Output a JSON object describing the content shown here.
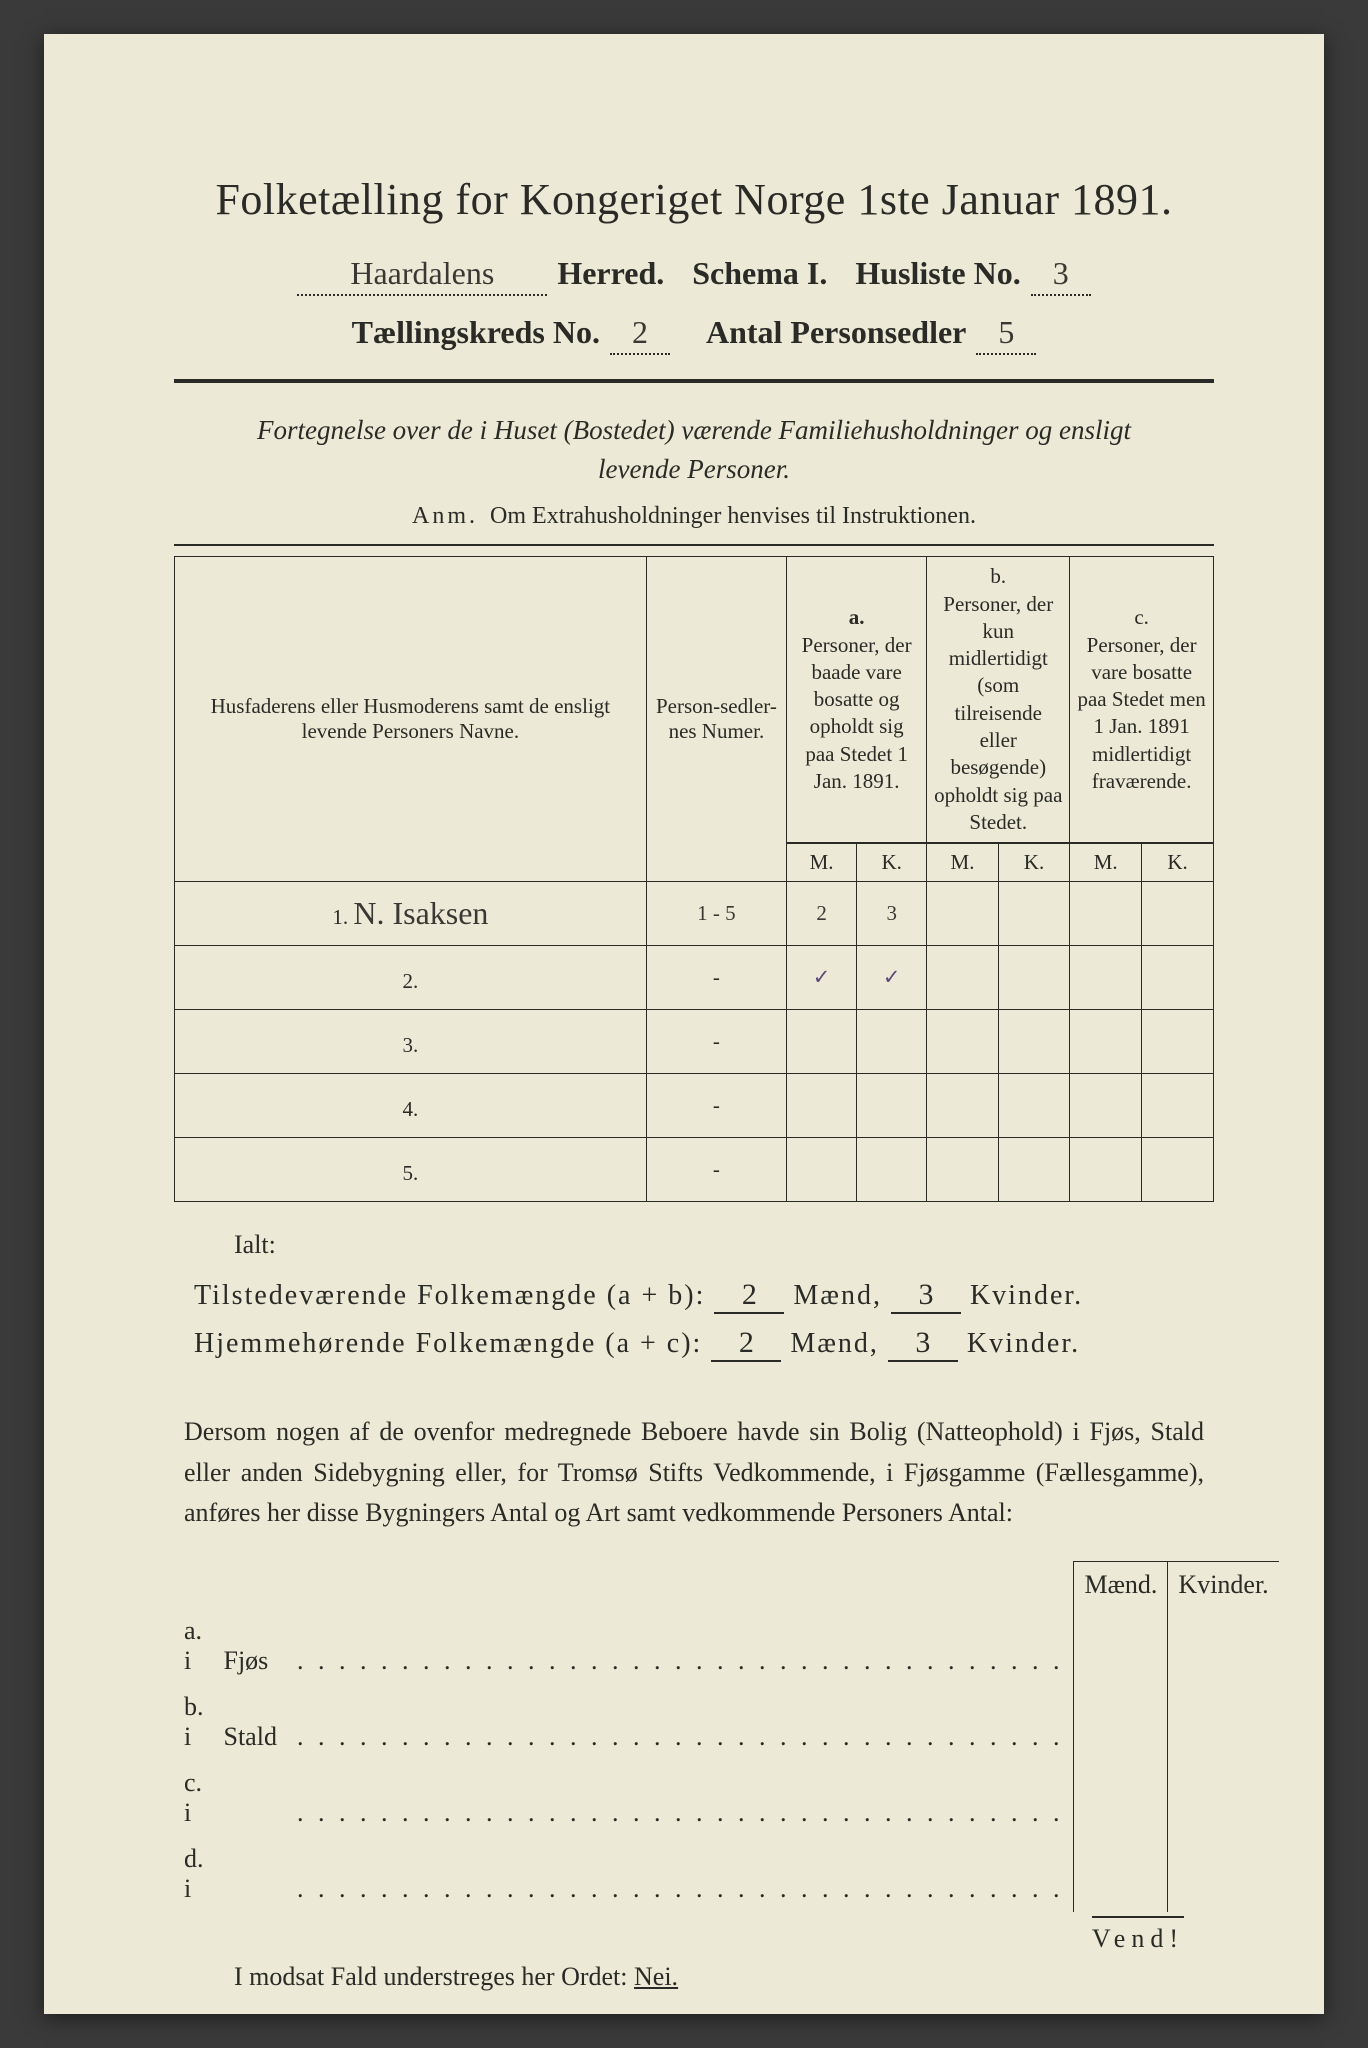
{
  "title": "Folketælling for Kongeriget Norge 1ste Januar 1891.",
  "herred_value": "Haardalens",
  "herred_label": "Herred.",
  "schema_label": "Schema I.",
  "husliste_label": "Husliste No.",
  "husliste_value": "3",
  "kreds_label": "Tællingskreds No.",
  "kreds_value": "2",
  "antal_label": "Antal Personsedler",
  "antal_value": "5",
  "intro_line1": "Fortegnelse over de i Huset (Bostedet) værende Familiehusholdninger og ensligt",
  "intro_line2": "levende Personer.",
  "anm_lead": "Anm.",
  "anm_text": "Om Extrahusholdninger henvises til Instruktionen.",
  "colhead_names": "Husfaderens eller Husmoderens samt de ensligt levende Personers Navne.",
  "colhead_num": "Person-sedler-nes Numer.",
  "colhead_a_label": "a.",
  "colhead_a_text": "Personer, der baade vare bosatte og opholdt sig paa Stedet 1 Jan. 1891.",
  "colhead_b_label": "b.",
  "colhead_b_text": "Personer, der kun midlertidigt (som tilreisende eller besøgende) opholdt sig paa Stedet.",
  "colhead_c_label": "c.",
  "colhead_c_text": "Personer, der vare bosatte paa Stedet men 1 Jan. 1891 midlertidigt fraværende.",
  "mk_m": "M.",
  "mk_k": "K.",
  "rows": [
    {
      "n": "1.",
      "name": "N. Isaksen",
      "num": "1 - 5",
      "a_m": "2",
      "a_k": "3"
    },
    {
      "n": "2.",
      "name": "",
      "num": "-",
      "a_m": "✓",
      "a_k": "✓",
      "check_row": true
    },
    {
      "n": "3.",
      "name": "",
      "num": "-",
      "a_m": "",
      "a_k": ""
    },
    {
      "n": "4.",
      "name": "",
      "num": "-",
      "a_m": "",
      "a_k": ""
    },
    {
      "n": "5.",
      "name": "",
      "num": "-",
      "a_m": "",
      "a_k": ""
    }
  ],
  "ialt": "Ialt:",
  "tilstede_label": "Tilstedeværende Folkemængde (a + b):",
  "hjemme_label": "Hjemmehørende Folkemængde (a + c):",
  "maend": "Mænd,",
  "kvinder": "Kvinder.",
  "tilstede_m": "2",
  "tilstede_k": "3",
  "hjemme_m": "2",
  "hjemme_k": "3",
  "paragraph": "Dersom nogen af de ovenfor medregnede Beboere havde sin Bolig (Natteophold) i Fjøs, Stald eller anden Sidebygning eller, for Tromsø Stifts Vedkommende, i Fjøsgamme (Fællesgamme), anføres her disse Bygningers Antal og Art samt vedkommende Personers Antal:",
  "lower_head_m": "Mænd.",
  "lower_head_k": "Kvinder.",
  "lower": [
    {
      "lab": "a.  i",
      "cat": "Fjøs"
    },
    {
      "lab": "b.  i",
      "cat": "Stald"
    },
    {
      "lab": "c.  i",
      "cat": ""
    },
    {
      "lab": "d.  i",
      "cat": ""
    }
  ],
  "nei_lead": "I modsat Fald understreges her Ordet:",
  "nei": "Nei.",
  "vend": "Vend!"
}
